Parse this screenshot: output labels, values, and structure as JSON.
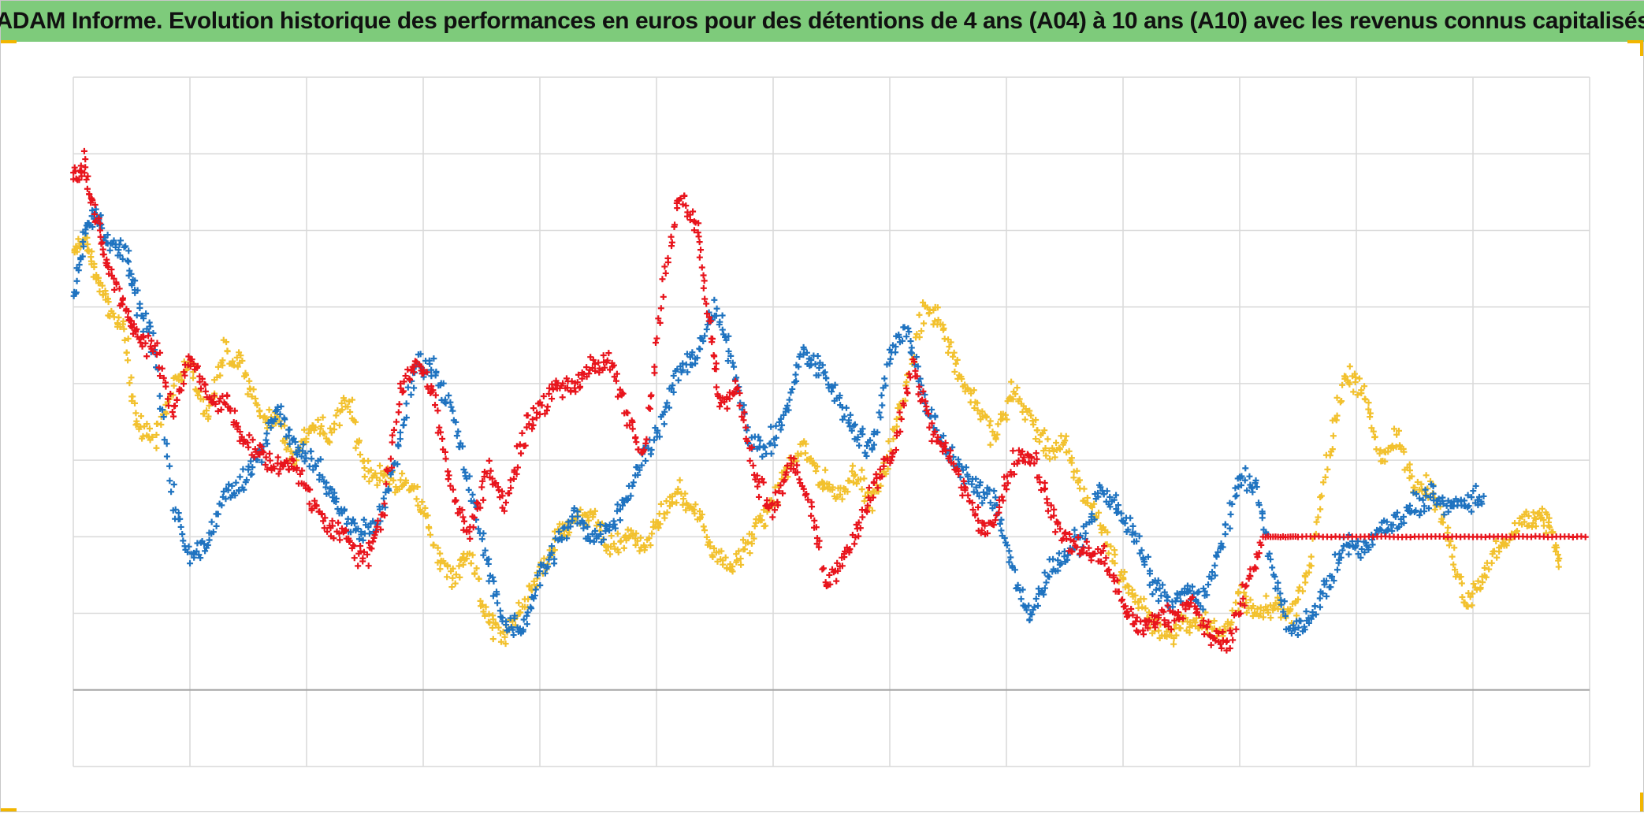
{
  "title": "ADAM Informe. Evolution historique des performances en euros pour des détentions de 4 ans (A04) à 10 ans (A10) avec les revenus connus capitalisés",
  "colors": {
    "title_bg": "#7ecb7b",
    "grid": "#d9d9d9",
    "baseline": "#a6a6a6",
    "corner_accent": "#f2b600"
  },
  "chart_data": {
    "type": "scatter",
    "marker": "plus",
    "grid": true,
    "x_gridlines": 13,
    "y_gridlines": 9,
    "xlim": [
      0,
      13
    ],
    "ylim": [
      -2,
      7
    ],
    "baseline_y": -1,
    "series": [
      {
        "color": "#f2c12e",
        "points": [
          [
            0.0,
            4.7
          ],
          [
            0.1,
            4.9
          ],
          [
            0.2,
            4.4
          ],
          [
            0.3,
            4.0
          ],
          [
            0.45,
            3.6
          ],
          [
            0.55,
            2.4
          ],
          [
            0.7,
            2.3
          ],
          [
            0.85,
            3.0
          ],
          [
            1.0,
            3.2
          ],
          [
            1.15,
            2.6
          ],
          [
            1.3,
            3.4
          ],
          [
            1.45,
            3.2
          ],
          [
            1.6,
            2.6
          ],
          [
            1.75,
            2.5
          ],
          [
            1.9,
            2.0
          ],
          [
            2.05,
            2.5
          ],
          [
            2.2,
            2.3
          ],
          [
            2.35,
            2.8
          ],
          [
            2.5,
            1.9
          ],
          [
            2.65,
            1.8
          ],
          [
            2.8,
            1.7
          ],
          [
            2.95,
            1.6
          ],
          [
            3.1,
            0.8
          ],
          [
            3.25,
            0.5
          ],
          [
            3.4,
            0.8
          ],
          [
            3.55,
            -0.1
          ],
          [
            3.7,
            -0.3
          ],
          [
            3.85,
            0.1
          ],
          [
            4.0,
            0.5
          ],
          [
            4.15,
            1.0
          ],
          [
            4.3,
            1.2
          ],
          [
            4.45,
            1.3
          ],
          [
            4.6,
            0.8
          ],
          [
            4.75,
            1.0
          ],
          [
            4.9,
            0.9
          ],
          [
            5.05,
            1.3
          ],
          [
            5.2,
            1.6
          ],
          [
            5.35,
            1.3
          ],
          [
            5.5,
            0.8
          ],
          [
            5.65,
            0.6
          ],
          [
            5.8,
            1.0
          ],
          [
            5.95,
            1.3
          ],
          [
            6.1,
            1.8
          ],
          [
            6.25,
            2.2
          ],
          [
            6.4,
            1.8
          ],
          [
            6.55,
            1.5
          ],
          [
            6.7,
            1.9
          ],
          [
            6.85,
            1.4
          ],
          [
            7.0,
            2.1
          ],
          [
            7.15,
            3.0
          ],
          [
            7.3,
            4.0
          ],
          [
            7.45,
            3.8
          ],
          [
            7.6,
            3.1
          ],
          [
            7.75,
            2.7
          ],
          [
            7.9,
            2.3
          ],
          [
            8.05,
            2.9
          ],
          [
            8.2,
            2.6
          ],
          [
            8.35,
            2.1
          ],
          [
            8.5,
            2.2
          ],
          [
            8.65,
            1.6
          ],
          [
            8.8,
            1.2
          ],
          [
            8.95,
            0.6
          ],
          [
            9.1,
            0.2
          ],
          [
            9.25,
            -0.1
          ],
          [
            9.4,
            -0.3
          ],
          [
            9.55,
            -0.1
          ],
          [
            9.7,
            -0.1
          ],
          [
            9.85,
            -0.3
          ],
          [
            10.0,
            0.2
          ],
          [
            10.15,
            0.0
          ],
          [
            10.3,
            0.1
          ],
          [
            10.45,
            0.0
          ],
          [
            10.6,
            0.6
          ],
          [
            10.75,
            2.0
          ],
          [
            10.9,
            3.1
          ],
          [
            11.05,
            3.0
          ],
          [
            11.2,
            2.0
          ],
          [
            11.35,
            2.3
          ],
          [
            11.5,
            1.7
          ],
          [
            11.65,
            1.6
          ],
          [
            11.8,
            0.9
          ],
          [
            11.95,
            0.1
          ],
          [
            12.1,
            0.5
          ],
          [
            12.25,
            0.9
          ],
          [
            12.4,
            1.2
          ],
          [
            12.55,
            1.3
          ],
          [
            12.65,
            1.2
          ],
          [
            12.75,
            0.6
          ]
        ]
      },
      {
        "color": "#1f73c0",
        "points": [
          [
            0.0,
            4.1
          ],
          [
            0.1,
            5.0
          ],
          [
            0.2,
            5.2
          ],
          [
            0.3,
            4.8
          ],
          [
            0.45,
            4.7
          ],
          [
            0.55,
            4.0
          ],
          [
            0.7,
            3.5
          ],
          [
            0.85,
            1.5
          ],
          [
            1.0,
            0.7
          ],
          [
            1.15,
            0.9
          ],
          [
            1.3,
            1.6
          ],
          [
            1.45,
            1.7
          ],
          [
            1.6,
            2.1
          ],
          [
            1.75,
            2.7
          ],
          [
            1.9,
            2.2
          ],
          [
            2.05,
            2.0
          ],
          [
            2.2,
            1.6
          ],
          [
            2.35,
            1.2
          ],
          [
            2.5,
            1.1
          ],
          [
            2.65,
            1.3
          ],
          [
            2.8,
            2.3
          ],
          [
            2.95,
            3.3
          ],
          [
            3.1,
            3.2
          ],
          [
            3.25,
            2.6
          ],
          [
            3.4,
            1.6
          ],
          [
            3.55,
            0.7
          ],
          [
            3.7,
            -0.2
          ],
          [
            3.85,
            -0.2
          ],
          [
            4.0,
            0.5
          ],
          [
            4.15,
            0.9
          ],
          [
            4.3,
            1.3
          ],
          [
            4.45,
            1.0
          ],
          [
            4.6,
            1.1
          ],
          [
            4.75,
            1.5
          ],
          [
            4.9,
            2.1
          ],
          [
            5.05,
            2.5
          ],
          [
            5.2,
            3.2
          ],
          [
            5.35,
            3.4
          ],
          [
            5.5,
            4.0
          ],
          [
            5.65,
            3.3
          ],
          [
            5.8,
            2.3
          ],
          [
            5.95,
            2.1
          ],
          [
            6.1,
            2.6
          ],
          [
            6.25,
            3.4
          ],
          [
            6.4,
            3.2
          ],
          [
            6.55,
            2.8
          ],
          [
            6.7,
            2.4
          ],
          [
            6.85,
            2.1
          ],
          [
            7.0,
            3.4
          ],
          [
            7.15,
            3.7
          ],
          [
            7.3,
            2.8
          ],
          [
            7.45,
            2.2
          ],
          [
            7.6,
            1.9
          ],
          [
            7.75,
            1.6
          ],
          [
            7.9,
            1.5
          ],
          [
            8.05,
            0.6
          ],
          [
            8.2,
            -0.1
          ],
          [
            8.35,
            0.5
          ],
          [
            8.5,
            0.7
          ],
          [
            8.65,
            1.0
          ],
          [
            8.8,
            1.6
          ],
          [
            8.95,
            1.4
          ],
          [
            9.1,
            1.0
          ],
          [
            9.25,
            0.4
          ],
          [
            9.4,
            0.1
          ],
          [
            9.55,
            0.3
          ],
          [
            9.7,
            0.2
          ],
          [
            9.85,
            0.9
          ],
          [
            10.0,
            1.8
          ],
          [
            10.15,
            1.6
          ],
          [
            10.3,
            0.4
          ],
          [
            10.45,
            -0.2
          ],
          [
            10.6,
            -0.1
          ],
          [
            10.75,
            0.4
          ],
          [
            10.9,
            0.9
          ],
          [
            11.05,
            0.8
          ],
          [
            11.2,
            1.1
          ],
          [
            11.35,
            1.2
          ],
          [
            11.5,
            1.4
          ],
          [
            11.65,
            1.5
          ],
          [
            11.8,
            1.4
          ],
          [
            11.95,
            1.5
          ],
          [
            12.1,
            1.5
          ]
        ]
      },
      {
        "color": "#e8141c",
        "points": [
          [
            0.0,
            5.7
          ],
          [
            0.1,
            5.9
          ],
          [
            0.2,
            5.1
          ],
          [
            0.3,
            4.5
          ],
          [
            0.45,
            4.0
          ],
          [
            0.55,
            3.6
          ],
          [
            0.7,
            3.5
          ],
          [
            0.85,
            2.6
          ],
          [
            1.0,
            3.4
          ],
          [
            1.15,
            2.8
          ],
          [
            1.3,
            2.8
          ],
          [
            1.45,
            2.3
          ],
          [
            1.6,
            2.1
          ],
          [
            1.75,
            1.9
          ],
          [
            1.9,
            2.0
          ],
          [
            2.05,
            1.4
          ],
          [
            2.2,
            1.1
          ],
          [
            2.35,
            1.0
          ],
          [
            2.5,
            0.7
          ],
          [
            2.65,
            1.3
          ],
          [
            2.8,
            2.9
          ],
          [
            2.95,
            3.3
          ],
          [
            3.1,
            2.8
          ],
          [
            3.25,
            1.6
          ],
          [
            3.4,
            1.0
          ],
          [
            3.55,
            1.9
          ],
          [
            3.7,
            1.4
          ],
          [
            3.85,
            2.3
          ],
          [
            4.0,
            2.7
          ],
          [
            4.15,
            2.9
          ],
          [
            4.3,
            3.0
          ],
          [
            4.45,
            3.2
          ],
          [
            4.6,
            3.3
          ],
          [
            4.75,
            2.6
          ],
          [
            4.9,
            2.1
          ],
          [
            5.05,
            4.2
          ],
          [
            5.2,
            5.5
          ],
          [
            5.35,
            5.1
          ],
          [
            5.45,
            3.8
          ],
          [
            5.55,
            2.7
          ],
          [
            5.7,
            2.9
          ],
          [
            5.85,
            1.8
          ],
          [
            6.0,
            1.3
          ],
          [
            6.15,
            2.0
          ],
          [
            6.3,
            1.5
          ],
          [
            6.45,
            0.4
          ],
          [
            6.6,
            0.7
          ],
          [
            6.75,
            1.2
          ],
          [
            6.9,
            1.8
          ],
          [
            7.05,
            2.2
          ],
          [
            7.2,
            3.3
          ],
          [
            7.35,
            2.4
          ],
          [
            7.5,
            2.1
          ],
          [
            7.65,
            1.6
          ],
          [
            7.8,
            1.0
          ],
          [
            7.95,
            1.4
          ],
          [
            8.1,
            2.1
          ],
          [
            8.25,
            2.0
          ],
          [
            8.4,
            1.2
          ],
          [
            8.55,
            0.9
          ],
          [
            8.7,
            0.8
          ],
          [
            8.85,
            0.7
          ],
          [
            9.0,
            0.1
          ],
          [
            9.15,
            -0.2
          ],
          [
            9.3,
            -0.1
          ],
          [
            9.45,
            0.0
          ],
          [
            9.6,
            0.1
          ],
          [
            9.75,
            -0.3
          ],
          [
            9.9,
            -0.4
          ],
          [
            10.05,
            0.3
          ],
          [
            10.2,
            1.0
          ],
          [
            10.5,
            1.0
          ],
          [
            11.0,
            1.0
          ],
          [
            11.5,
            1.0
          ],
          [
            12.0,
            1.0
          ],
          [
            12.5,
            1.0
          ],
          [
            13.0,
            1.0
          ]
        ]
      }
    ]
  }
}
